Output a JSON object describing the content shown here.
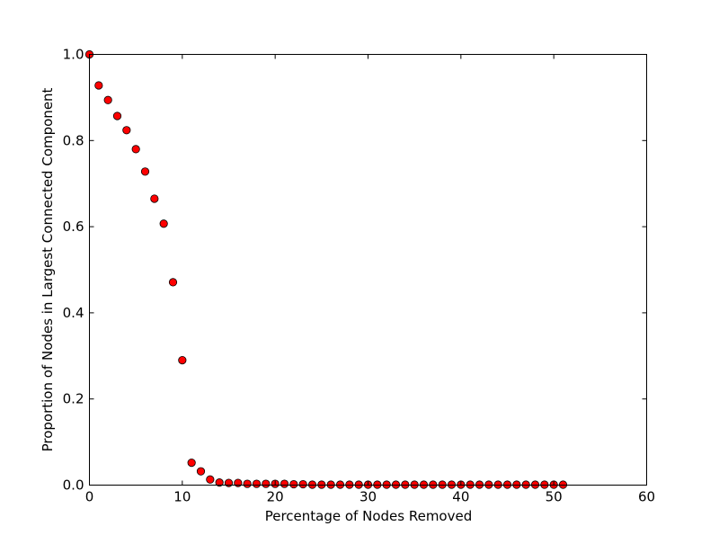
{
  "chart_data": {
    "type": "scatter",
    "title": "",
    "xlabel": "Percentage of Nodes Removed",
    "ylabel": "Proportion of Nodes in Largest Connected Component",
    "xlim": [
      0,
      60
    ],
    "ylim": [
      0.0,
      1.0
    ],
    "xticks": [
      0,
      10,
      20,
      30,
      40,
      50,
      60
    ],
    "xtick_labels": [
      "0",
      "10",
      "20",
      "30",
      "40",
      "50",
      "60"
    ],
    "yticks": [
      0.0,
      0.2,
      0.4,
      0.6,
      0.8,
      1.0
    ],
    "ytick_labels": [
      "0.0",
      "0.2",
      "0.4",
      "0.6",
      "0.8",
      "1.0"
    ],
    "grid": false,
    "marker_color": "#ff0000",
    "marker_edge_color": "#000000",
    "series": [
      {
        "x": [
          0,
          1,
          2,
          3,
          4,
          5,
          6,
          7,
          8,
          9,
          10,
          11,
          12,
          13,
          14,
          15,
          16,
          17,
          18,
          19,
          20,
          21,
          22,
          23,
          24,
          25,
          26,
          27,
          28,
          29,
          30,
          31,
          32,
          33,
          34,
          35,
          36,
          37,
          38,
          39,
          40,
          41,
          42,
          43,
          44,
          45,
          46,
          47,
          48,
          49,
          50,
          51
        ],
        "y": [
          1.0,
          0.928,
          0.894,
          0.857,
          0.824,
          0.78,
          0.728,
          0.665,
          0.607,
          0.471,
          0.29,
          0.052,
          0.032,
          0.013,
          0.006,
          0.005,
          0.005,
          0.003,
          0.003,
          0.003,
          0.003,
          0.003,
          0.002,
          0.002,
          0.001,
          0.001,
          0.001,
          0.001,
          0.001,
          0.001,
          0.001,
          0.001,
          0.001,
          0.001,
          0.001,
          0.001,
          0.001,
          0.001,
          0.001,
          0.001,
          0.001,
          0.001,
          0.001,
          0.001,
          0.001,
          0.001,
          0.001,
          0.001,
          0.001,
          0.001,
          0.001,
          0.001
        ]
      }
    ]
  }
}
